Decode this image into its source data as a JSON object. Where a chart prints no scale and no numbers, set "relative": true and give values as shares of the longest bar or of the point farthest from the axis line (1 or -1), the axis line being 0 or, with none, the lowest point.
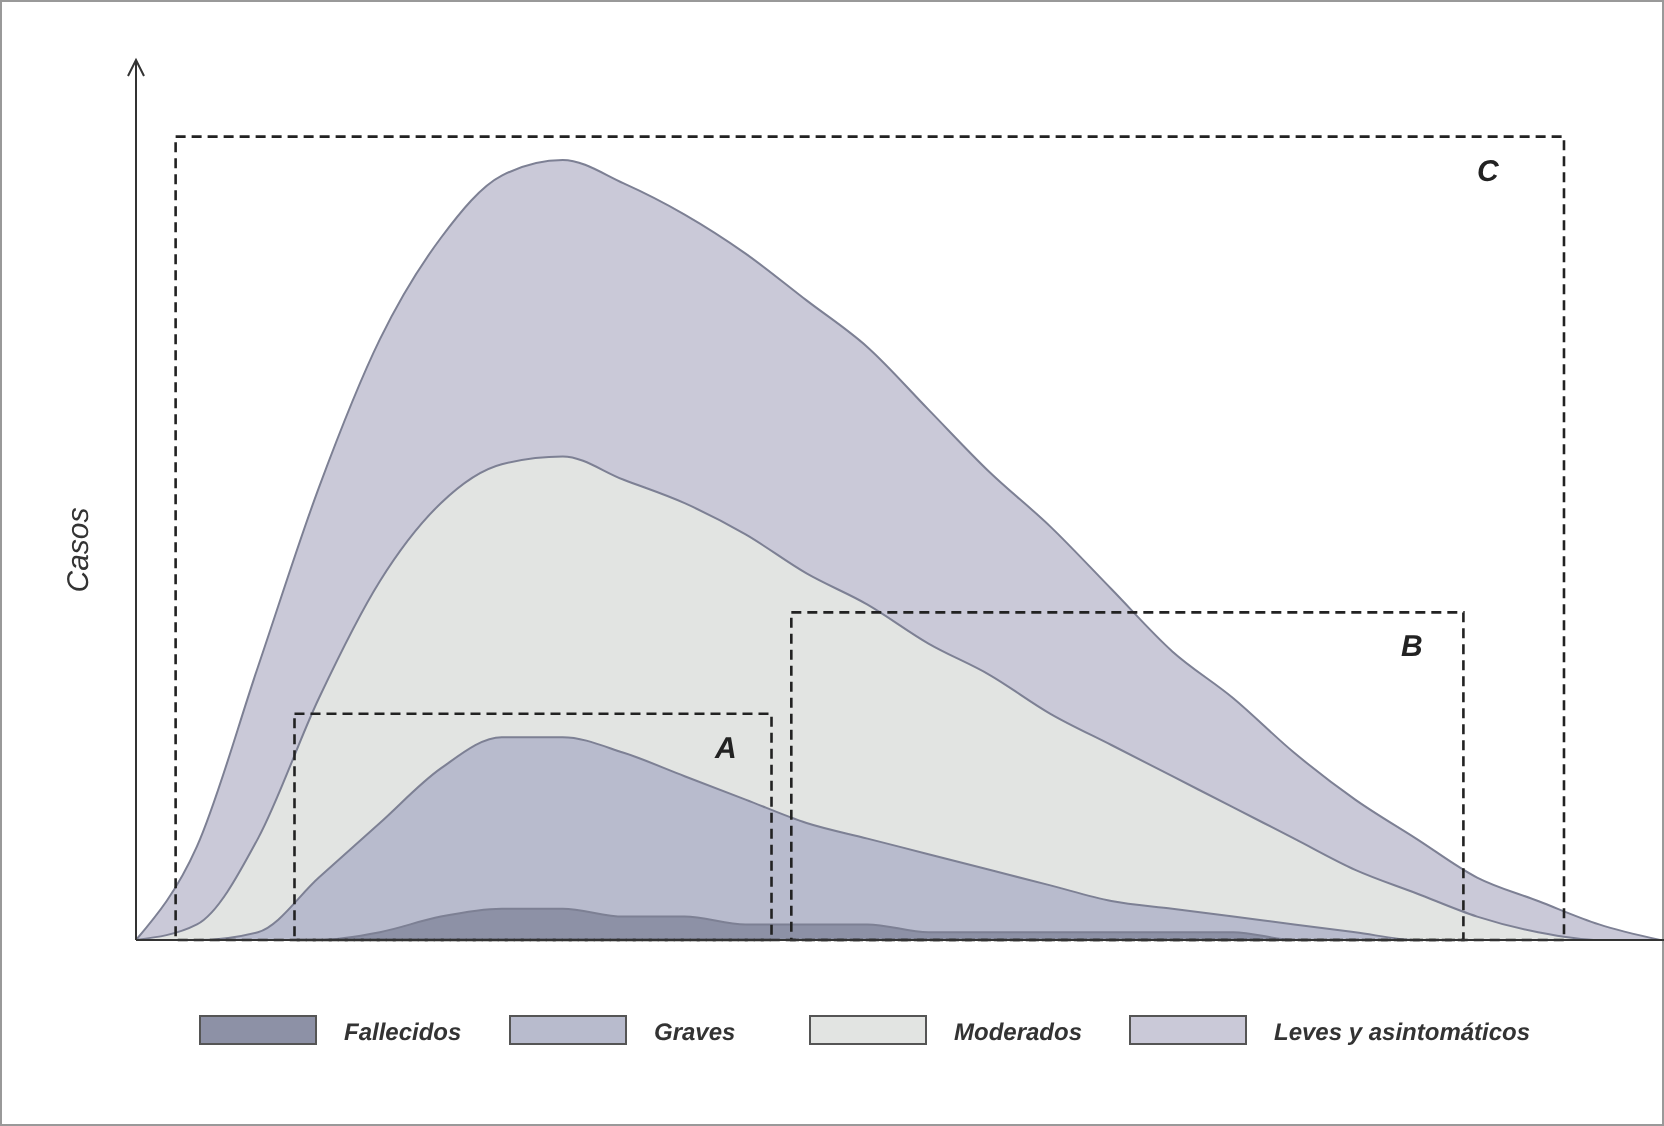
{
  "chart_data": {
    "type": "area",
    "relative": true,
    "ylabel": "Casos",
    "legend": "bottom",
    "categories": [
      null,
      null,
      null,
      null,
      null,
      null,
      null,
      null,
      null,
      null,
      null,
      null,
      null,
      null,
      null,
      null,
      null,
      null,
      null,
      null,
      null,
      null,
      null,
      null,
      null,
      null
    ],
    "series": [
      {
        "name": "Fallecidos",
        "color": "#8d91a6",
        "values": [
          0,
          0,
          0,
          0,
          0.01,
          0.03,
          0.04,
          0.04,
          0.03,
          0.03,
          0.02,
          0.02,
          0.02,
          0.01,
          0.01,
          0.01,
          0.01,
          0.01,
          0.01,
          0,
          0,
          0,
          0,
          0,
          0,
          0
        ]
      },
      {
        "name": "Graves",
        "color": "#b8bbcd",
        "values": [
          0,
          0,
          0.01,
          0.08,
          0.15,
          0.22,
          0.26,
          0.26,
          0.24,
          0.21,
          0.18,
          0.15,
          0.13,
          0.11,
          0.09,
          0.07,
          0.05,
          0.04,
          0.03,
          0.02,
          0.01,
          0,
          0,
          0,
          0,
          0
        ]
      },
      {
        "name": "Moderados",
        "color": "#e2e4e2",
        "values": [
          0,
          0.02,
          0.13,
          0.31,
          0.46,
          0.56,
          0.61,
          0.62,
          0.59,
          0.56,
          0.52,
          0.47,
          0.43,
          0.38,
          0.34,
          0.29,
          0.25,
          0.21,
          0.17,
          0.13,
          0.09,
          0.06,
          0.03,
          0.01,
          0,
          0
        ]
      },
      {
        "name": "Leves y asintomáticos",
        "color": "#cac9d8",
        "values": [
          0,
          0.12,
          0.35,
          0.58,
          0.77,
          0.9,
          0.98,
          1,
          0.97,
          0.93,
          0.88,
          0.82,
          0.76,
          0.68,
          0.6,
          0.53,
          0.45,
          0.37,
          0.31,
          0.24,
          0.18,
          0.13,
          0.08,
          0.05,
          0.02,
          0
        ]
      }
    ],
    "annotations": [
      "A",
      "B",
      "C"
    ]
  }
}
